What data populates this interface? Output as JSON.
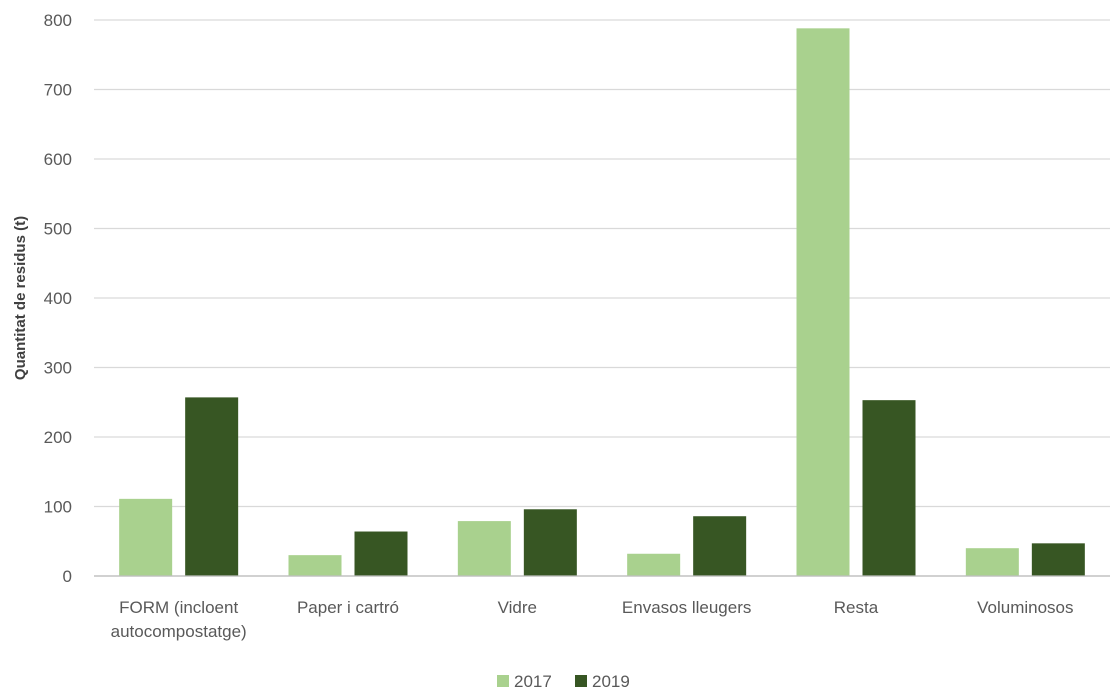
{
  "chart_data": {
    "type": "bar",
    "ylabel": "Quantitat de residus (t)",
    "xlabel": "",
    "ylim": [
      0,
      800
    ],
    "yticks": [
      0,
      100,
      200,
      300,
      400,
      500,
      600,
      700,
      800
    ],
    "grid": true,
    "legend_position": "bottom",
    "categories": [
      [
        "FORM (incloent",
        "autocompostatge)"
      ],
      [
        "Paper i cartró"
      ],
      [
        "Vidre"
      ],
      [
        "Envasos lleugers"
      ],
      [
        "Resta"
      ],
      [
        "Voluminosos"
      ]
    ],
    "series": [
      {
        "name": "2017",
        "color": "#a9d18e",
        "values": [
          111,
          30,
          79,
          32,
          788,
          40
        ]
      },
      {
        "name": "2019",
        "color": "#375623",
        "values": [
          257,
          64,
          96,
          86,
          253,
          47
        ]
      }
    ]
  }
}
